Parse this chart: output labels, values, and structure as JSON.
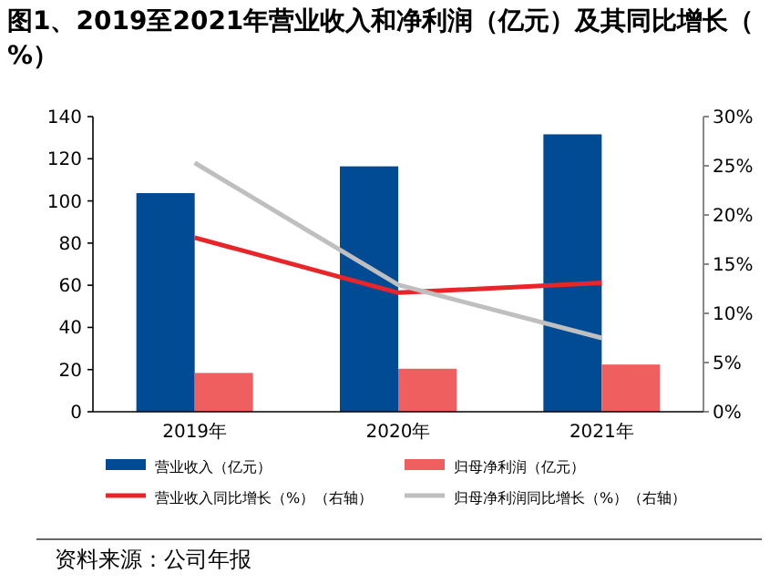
{
  "chart_data": {
    "type": "bar",
    "title": "图1、2019至2021年营业收入和净利润（亿元）及其同比增长（%）",
    "categories": [
      "2019年",
      "2020年",
      "2021年"
    ],
    "series": [
      {
        "name": "营业收入（亿元）",
        "color": "#004b93",
        "values": [
          103.7,
          116.4,
          131.6
        ]
      },
      {
        "name": "归母净利润（亿元）",
        "color": "#ef5f5f",
        "values": [
          18.4,
          20.4,
          22.4
        ]
      },
      {
        "name": "营业收入同比增长（%）（右轴）",
        "type": "line",
        "axis": "y2",
        "color": "#e8262a",
        "values": [
          17.7,
          12.1,
          13.1
        ]
      },
      {
        "name": "归母净利润同比增长（%）（右轴）",
        "type": "line",
        "axis": "y2",
        "color": "#bfbfbf",
        "values": [
          25.3,
          12.9,
          7.5
        ]
      }
    ],
    "ylim": [
      0,
      140
    ],
    "yticks": [
      0,
      20,
      40,
      60,
      80,
      100,
      120,
      140
    ],
    "y2lim": [
      0,
      30
    ],
    "y2ticks": [
      {
        "value": 0,
        "label": "0%"
      },
      {
        "value": 5,
        "label": "5%"
      },
      {
        "value": 10,
        "label": "10%"
      },
      {
        "value": 15,
        "label": "15%"
      },
      {
        "value": 20,
        "label": "20%"
      },
      {
        "value": 25,
        "label": "25%"
      },
      {
        "value": 30,
        "label": "30%"
      }
    ],
    "legend": "bottom",
    "grid": false,
    "annotations": [
      "资料来源：公司年报"
    ]
  }
}
